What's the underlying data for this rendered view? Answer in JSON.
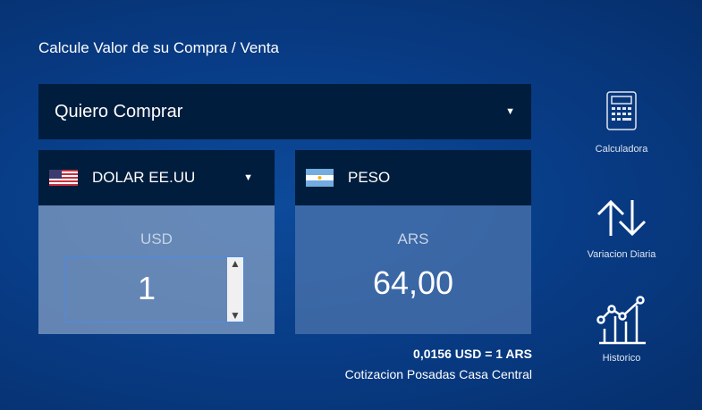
{
  "title": "Calcule Valor de su Compra / Venta",
  "operation": {
    "selected": "Quiero Comprar"
  },
  "from": {
    "currency": "DOLAR EE.UU",
    "code": "USD",
    "amount": "1",
    "flag": "us-flag"
  },
  "to": {
    "currency": "PESO",
    "code": "ARS",
    "amount": "64,00",
    "flag": "argentina-flag"
  },
  "rate": "0,0156 USD = 1 ARS",
  "source": "Cotizacion Posadas Casa Central",
  "sidebar": [
    {
      "label": "Calculadora",
      "icon": "calculator-icon"
    },
    {
      "label": "Variacion Diaria",
      "icon": "up-down-arrows-icon"
    },
    {
      "label": "Historico",
      "icon": "chart-icon"
    }
  ]
}
